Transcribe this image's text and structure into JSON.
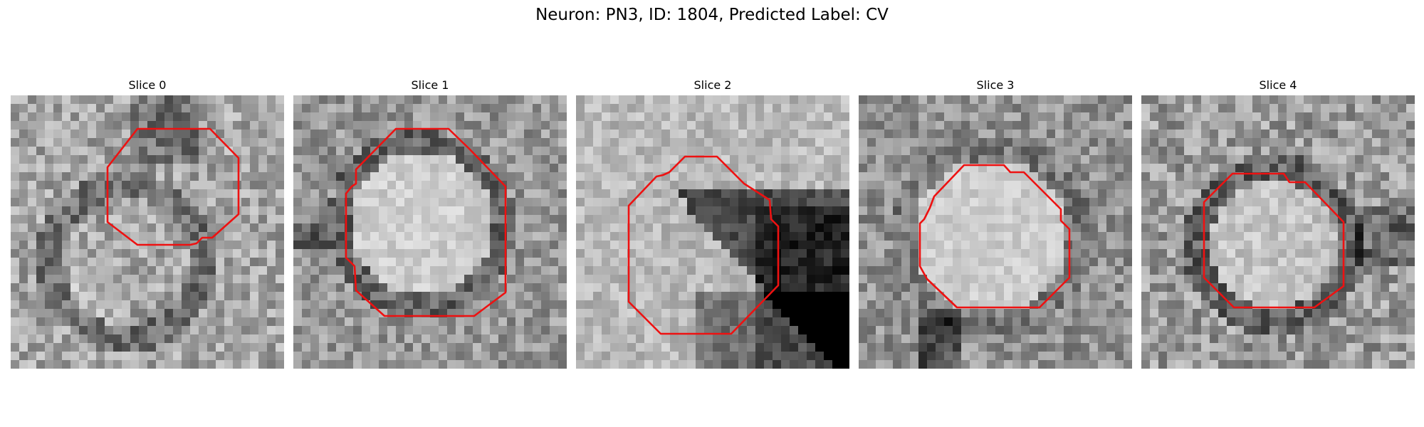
{
  "figure": {
    "title": "Neuron: PN3, ID: 1804, Predicted Label: CV",
    "contour_color": "#ee1111"
  },
  "panels": [
    {
      "title": "Slice 0"
    },
    {
      "title": "Slice 1"
    },
    {
      "title": "Slice 2"
    },
    {
      "title": "Slice 3"
    },
    {
      "title": "Slice 4"
    }
  ]
}
